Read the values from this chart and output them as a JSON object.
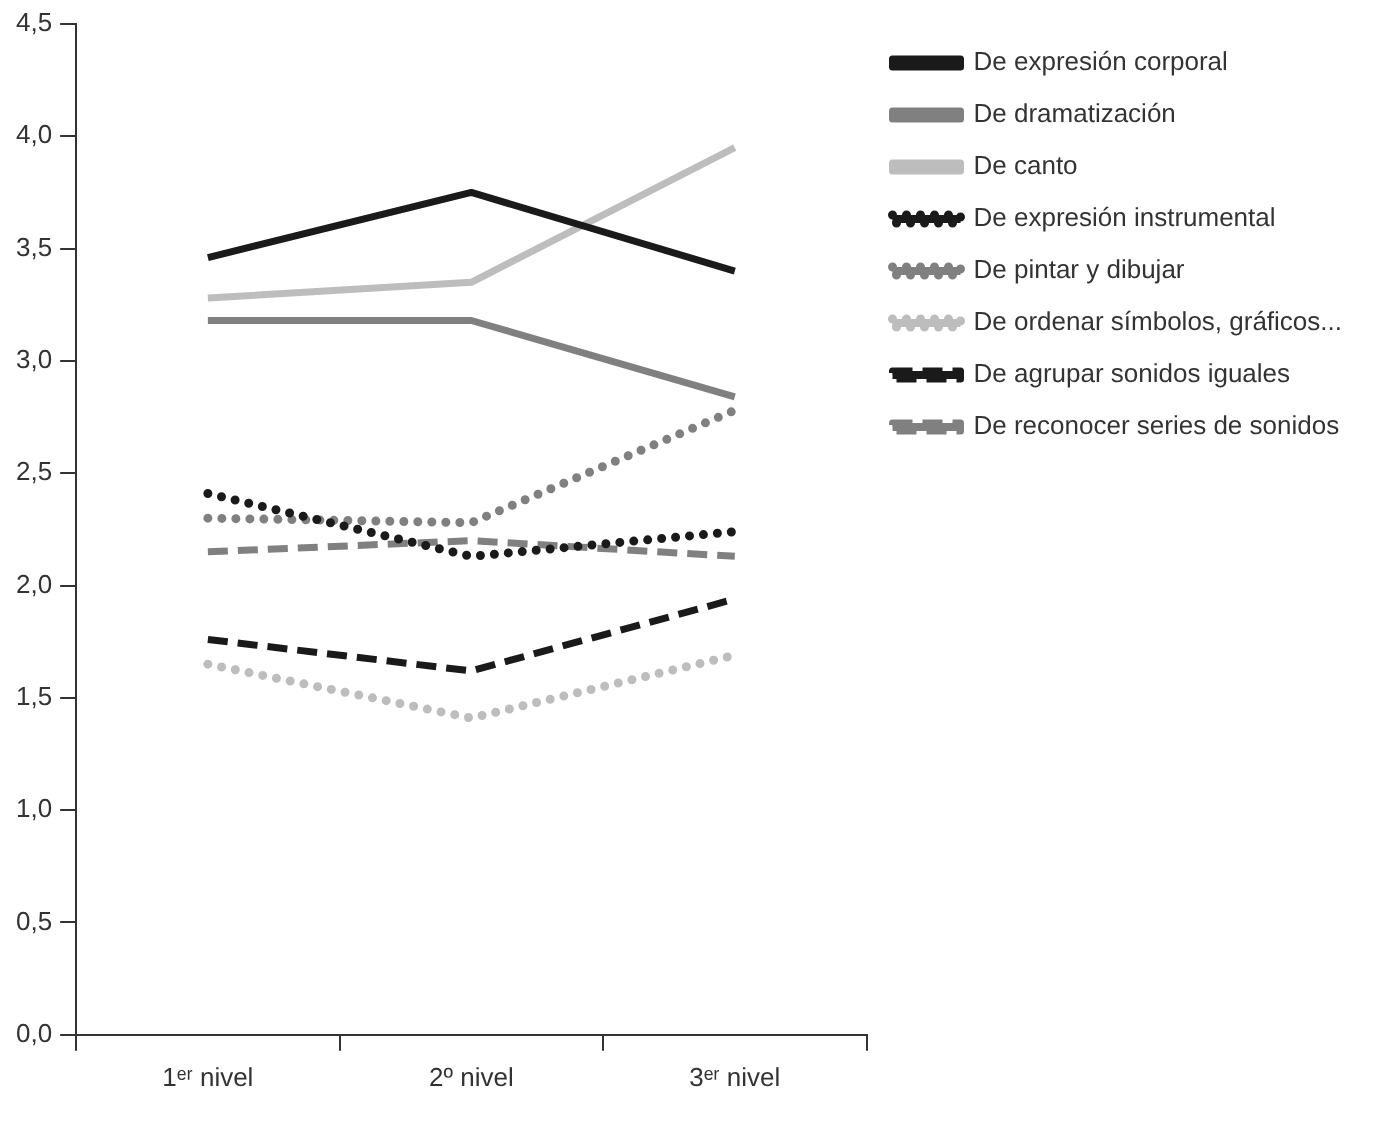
{
  "chart_data": {
    "type": "line",
    "categories": [
      "1ᵉʳ nivel",
      "2º nivel",
      "3ᵉʳ nivel"
    ],
    "series": [
      {
        "name": "De expresión corporal",
        "color": "#1a1a1a",
        "line_style": "solid",
        "values": [
          3.46,
          3.75,
          3.4
        ]
      },
      {
        "name": "De dramatización",
        "color": "#808080",
        "line_style": "solid",
        "values": [
          3.18,
          3.18,
          2.84
        ]
      },
      {
        "name": "De canto",
        "color": "#bdbdbd",
        "line_style": "solid",
        "values": [
          3.28,
          3.35,
          3.95
        ]
      },
      {
        "name": "De expresión instrumental",
        "color": "#1a1a1a",
        "line_style": "dotted",
        "values": [
          2.41,
          2.13,
          2.24
        ]
      },
      {
        "name": "De pintar y dibujar",
        "color": "#808080",
        "line_style": "dotted",
        "values": [
          2.3,
          2.28,
          2.78
        ]
      },
      {
        "name": "De ordenar símbolos, gráficos...",
        "color": "#bdbdbd",
        "line_style": "dotted",
        "values": [
          1.65,
          1.41,
          1.69
        ]
      },
      {
        "name": "De agrupar sonidos iguales",
        "color": "#1a1a1a",
        "line_style": "dashed",
        "values": [
          1.76,
          1.62,
          1.94
        ]
      },
      {
        "name": "De reconocer series de sonidos",
        "color": "#808080",
        "line_style": "dashed",
        "values": [
          2.15,
          2.2,
          2.13
        ]
      }
    ],
    "ylim": [
      0,
      4.5
    ],
    "yticks": [
      {
        "value": 0,
        "label": "0,0"
      },
      {
        "value": 0.5,
        "label": "0,5"
      },
      {
        "value": 1,
        "label": "1,0"
      },
      {
        "value": 1.5,
        "label": "1,5"
      },
      {
        "value": 2,
        "label": "2,0"
      },
      {
        "value": 2.5,
        "label": "2,5"
      },
      {
        "value": 3,
        "label": "3,0"
      },
      {
        "value": 3.5,
        "label": "3,5"
      },
      {
        "value": 4,
        "label": "4,0"
      },
      {
        "value": 4.5,
        "label": "4,5"
      }
    ],
    "grid": false,
    "legend": "right",
    "marker": "none"
  }
}
